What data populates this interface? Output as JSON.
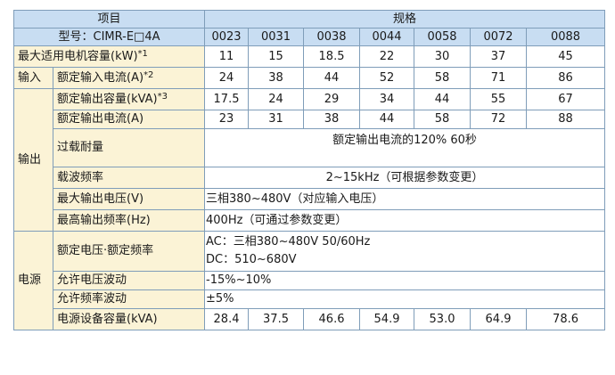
{
  "table": {
    "header": {
      "item_label": "项目",
      "spec_label": "规格"
    },
    "model_row": {
      "label": "型号：CIMR-E□4A",
      "values": [
        "0023",
        "0031",
        "0038",
        "0044",
        "0058",
        "0072",
        "0088"
      ]
    },
    "motor_row": {
      "label": "最大适用电机容量(kW)",
      "note": "*1",
      "values": [
        "11",
        "15",
        "18.5",
        "22",
        "30",
        "37",
        "45"
      ]
    },
    "input_section": {
      "group_label": "输入",
      "rated_current": {
        "label": "额定输入电流(A)",
        "note": "*2",
        "values": [
          "24",
          "38",
          "44",
          "52",
          "58",
          "71",
          "86"
        ]
      }
    },
    "output_section": {
      "group_label": "输出",
      "rated_capacity": {
        "label": "额定输出容量(kVA)",
        "note": "*3",
        "values": [
          "17.5",
          "24",
          "29",
          "34",
          "44",
          "55",
          "67"
        ]
      },
      "rated_current": {
        "label": "额定输出电流(A)",
        "values": [
          "23",
          "31",
          "38",
          "44",
          "58",
          "72",
          "88"
        ]
      },
      "overload": {
        "label": "过载耐量",
        "value": "额定输出电流的120% 60秒"
      },
      "carrier_freq": {
        "label": "载波频率",
        "value": "2~15kHz（可根据参数变更）"
      },
      "max_voltage": {
        "label": "最大输出电压(V)",
        "value": "三相380~480V（对应输入电压）"
      },
      "max_freq": {
        "label": "最高输出频率(Hz)",
        "value": "400Hz（可通过参数变更）"
      }
    },
    "power_section": {
      "group_label": "电源",
      "rated_vf": {
        "label": "额定电压·额定频率",
        "value_ac": "AC：三相380~480V 50/60Hz",
        "value_dc": "DC：510~680V"
      },
      "voltage_fluct": {
        "label": "允许电压波动",
        "value": "-15%~10%"
      },
      "freq_fluct": {
        "label": "允许频率波动",
        "value": "±5%"
      },
      "capacity": {
        "label": "电源设备容量(kVA)",
        "values": [
          "28.4",
          "37.5",
          "46.6",
          "54.9",
          "53.0",
          "64.9",
          "78.6"
        ]
      }
    }
  }
}
